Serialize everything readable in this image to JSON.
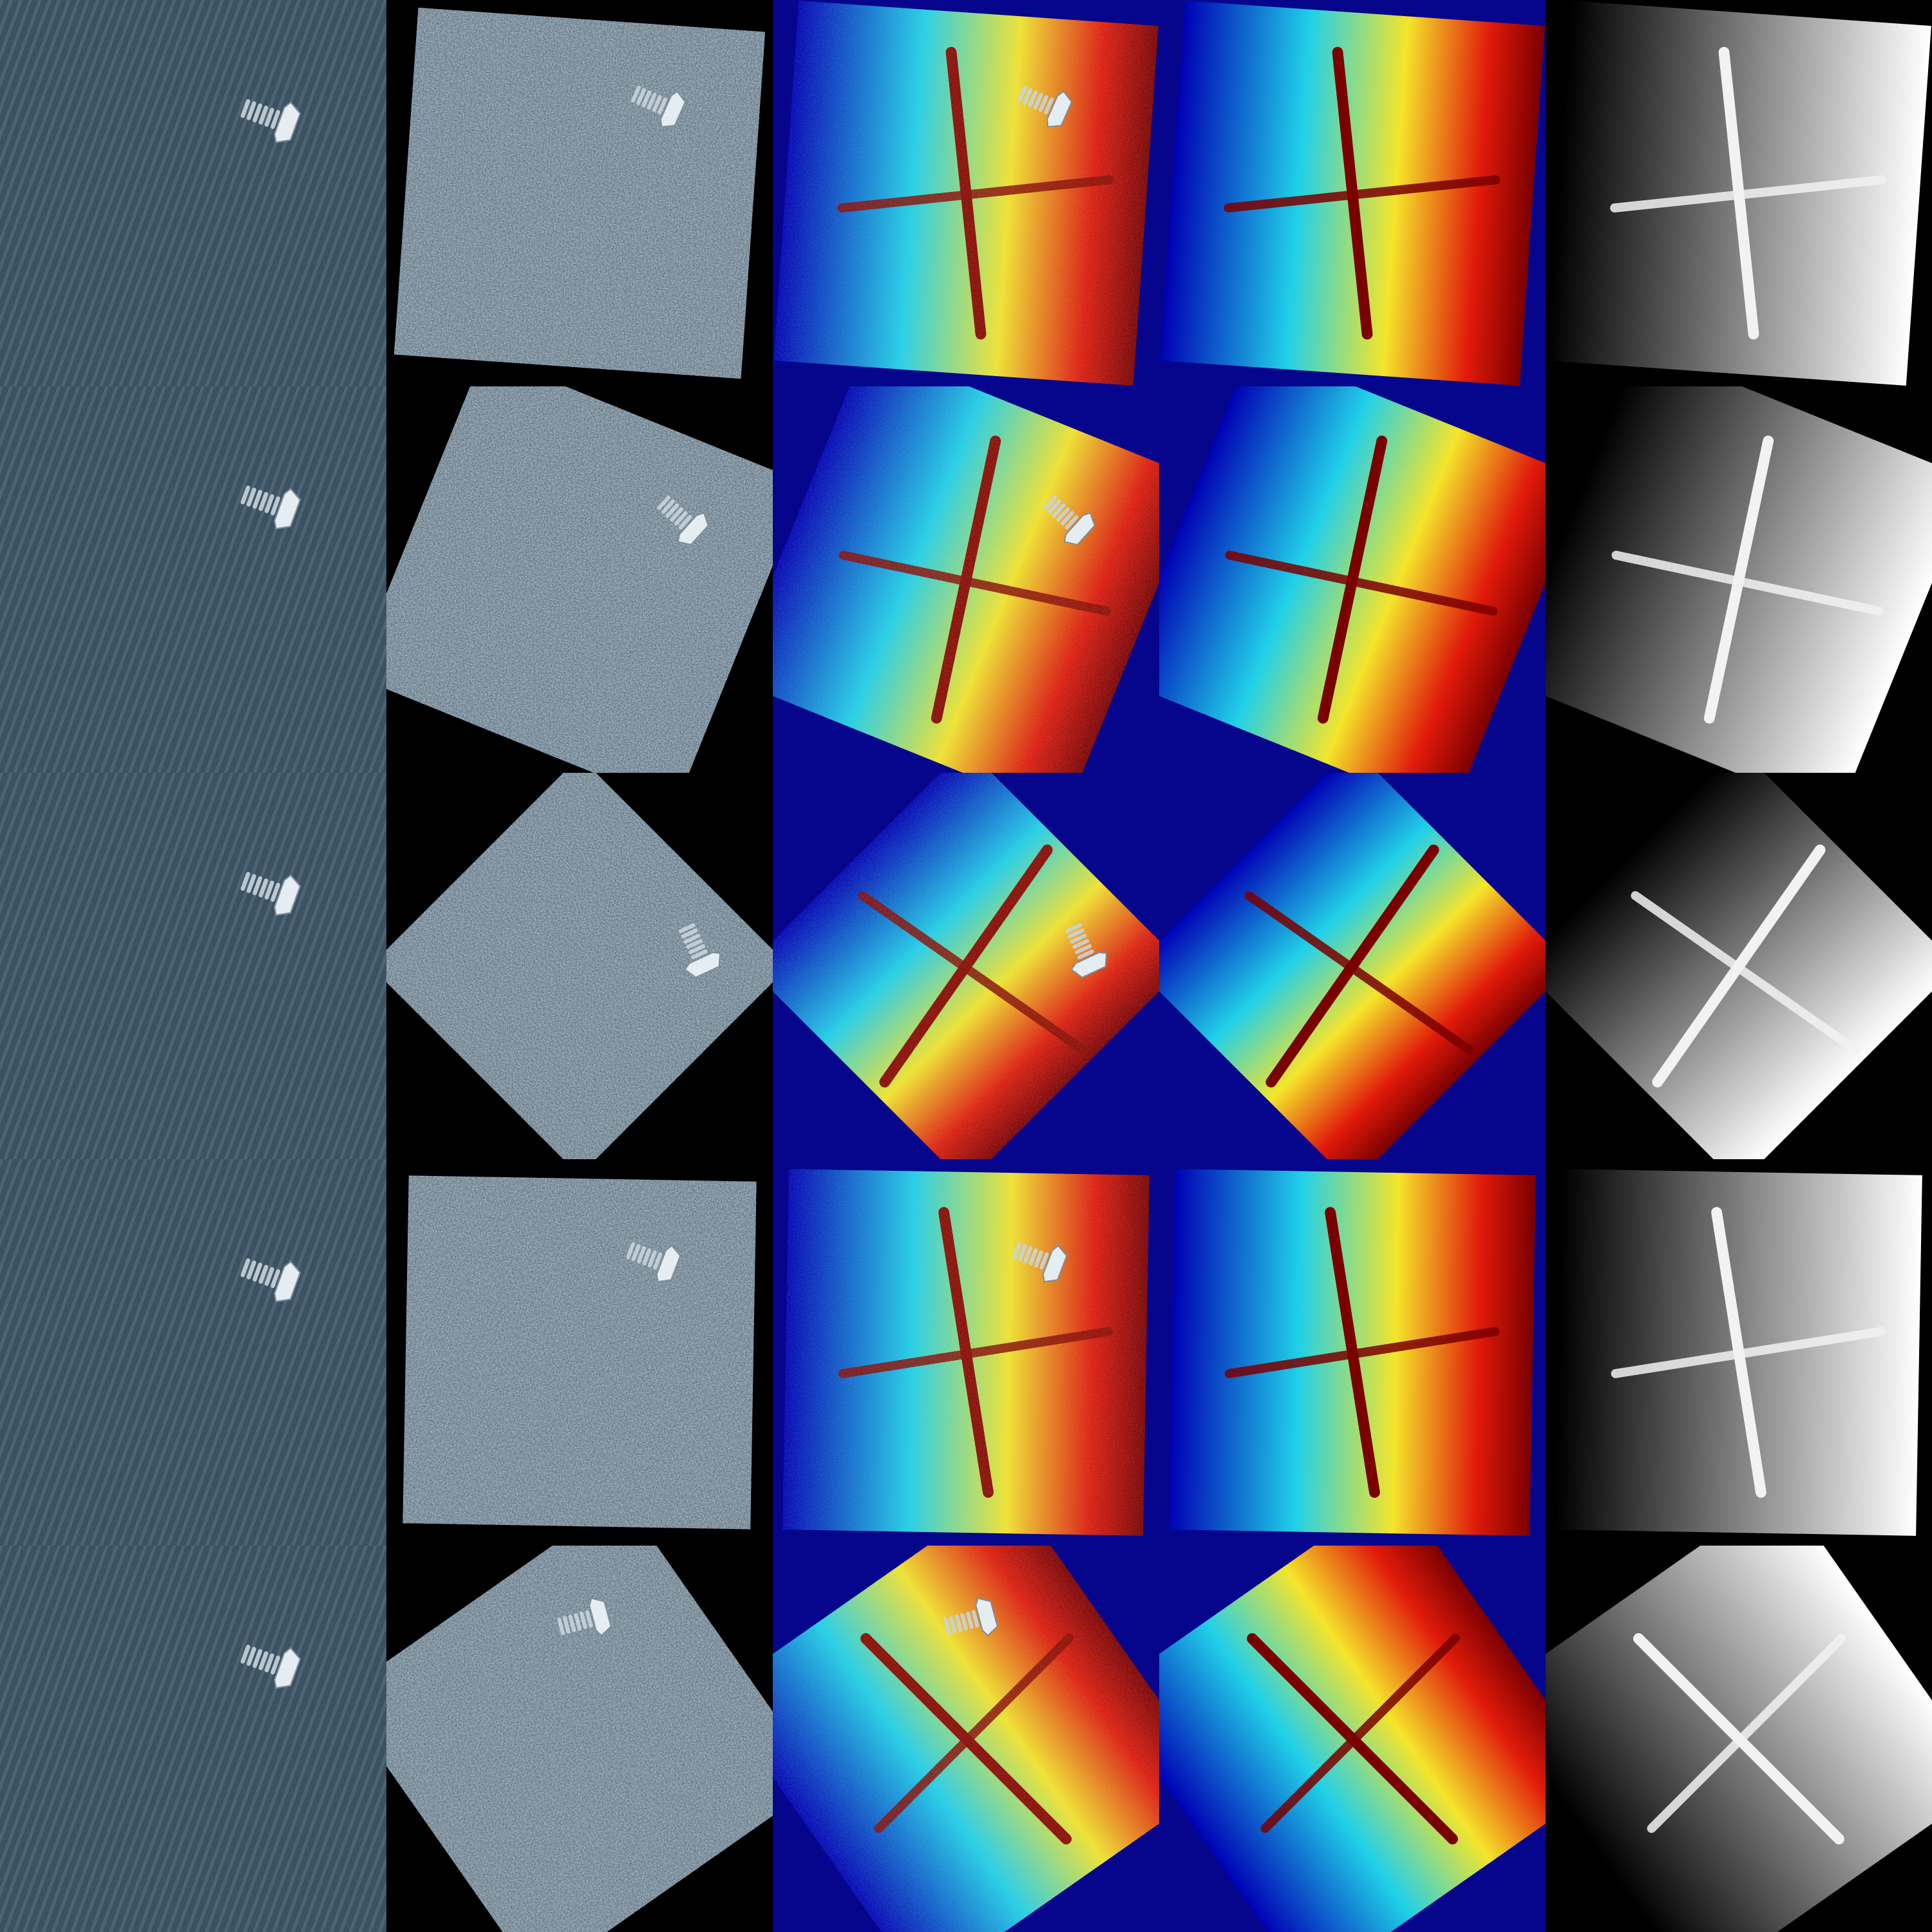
{
  "grid": {
    "columns": [
      {
        "kind": "original-photo",
        "description_colors": {
          "bg": "#3f5565"
        }
      },
      {
        "kind": "augmented-photo",
        "description_colors": {
          "bg": "#6f7f8c"
        }
      },
      {
        "kind": "jet-depth-overlay",
        "description_colors": {
          "bg": "#0b0b8a"
        }
      },
      {
        "kind": "jet-depth",
        "description_colors": {
          "bg": "#0b0b8a"
        }
      },
      {
        "kind": "grayscale-depth",
        "description_colors": {
          "bg": "#000000"
        }
      }
    ],
    "rows": [
      {
        "rotation_deg": 4
      },
      {
        "rotation_deg": 22
      },
      {
        "rotation_deg": 45
      },
      {
        "rotation_deg": 1
      },
      {
        "rotation_deg": -35
      }
    ]
  },
  "colors": {
    "fabric_dark": "#3c5262",
    "fabric_light": "#5a7283",
    "bolt": "#c9d3dc",
    "jet_blue": "#0000b4",
    "jet_cyan": "#20d0e8",
    "jet_yellow": "#f4e52a",
    "jet_red": "#e01a0a",
    "jet_darkred": "#7a0000"
  }
}
